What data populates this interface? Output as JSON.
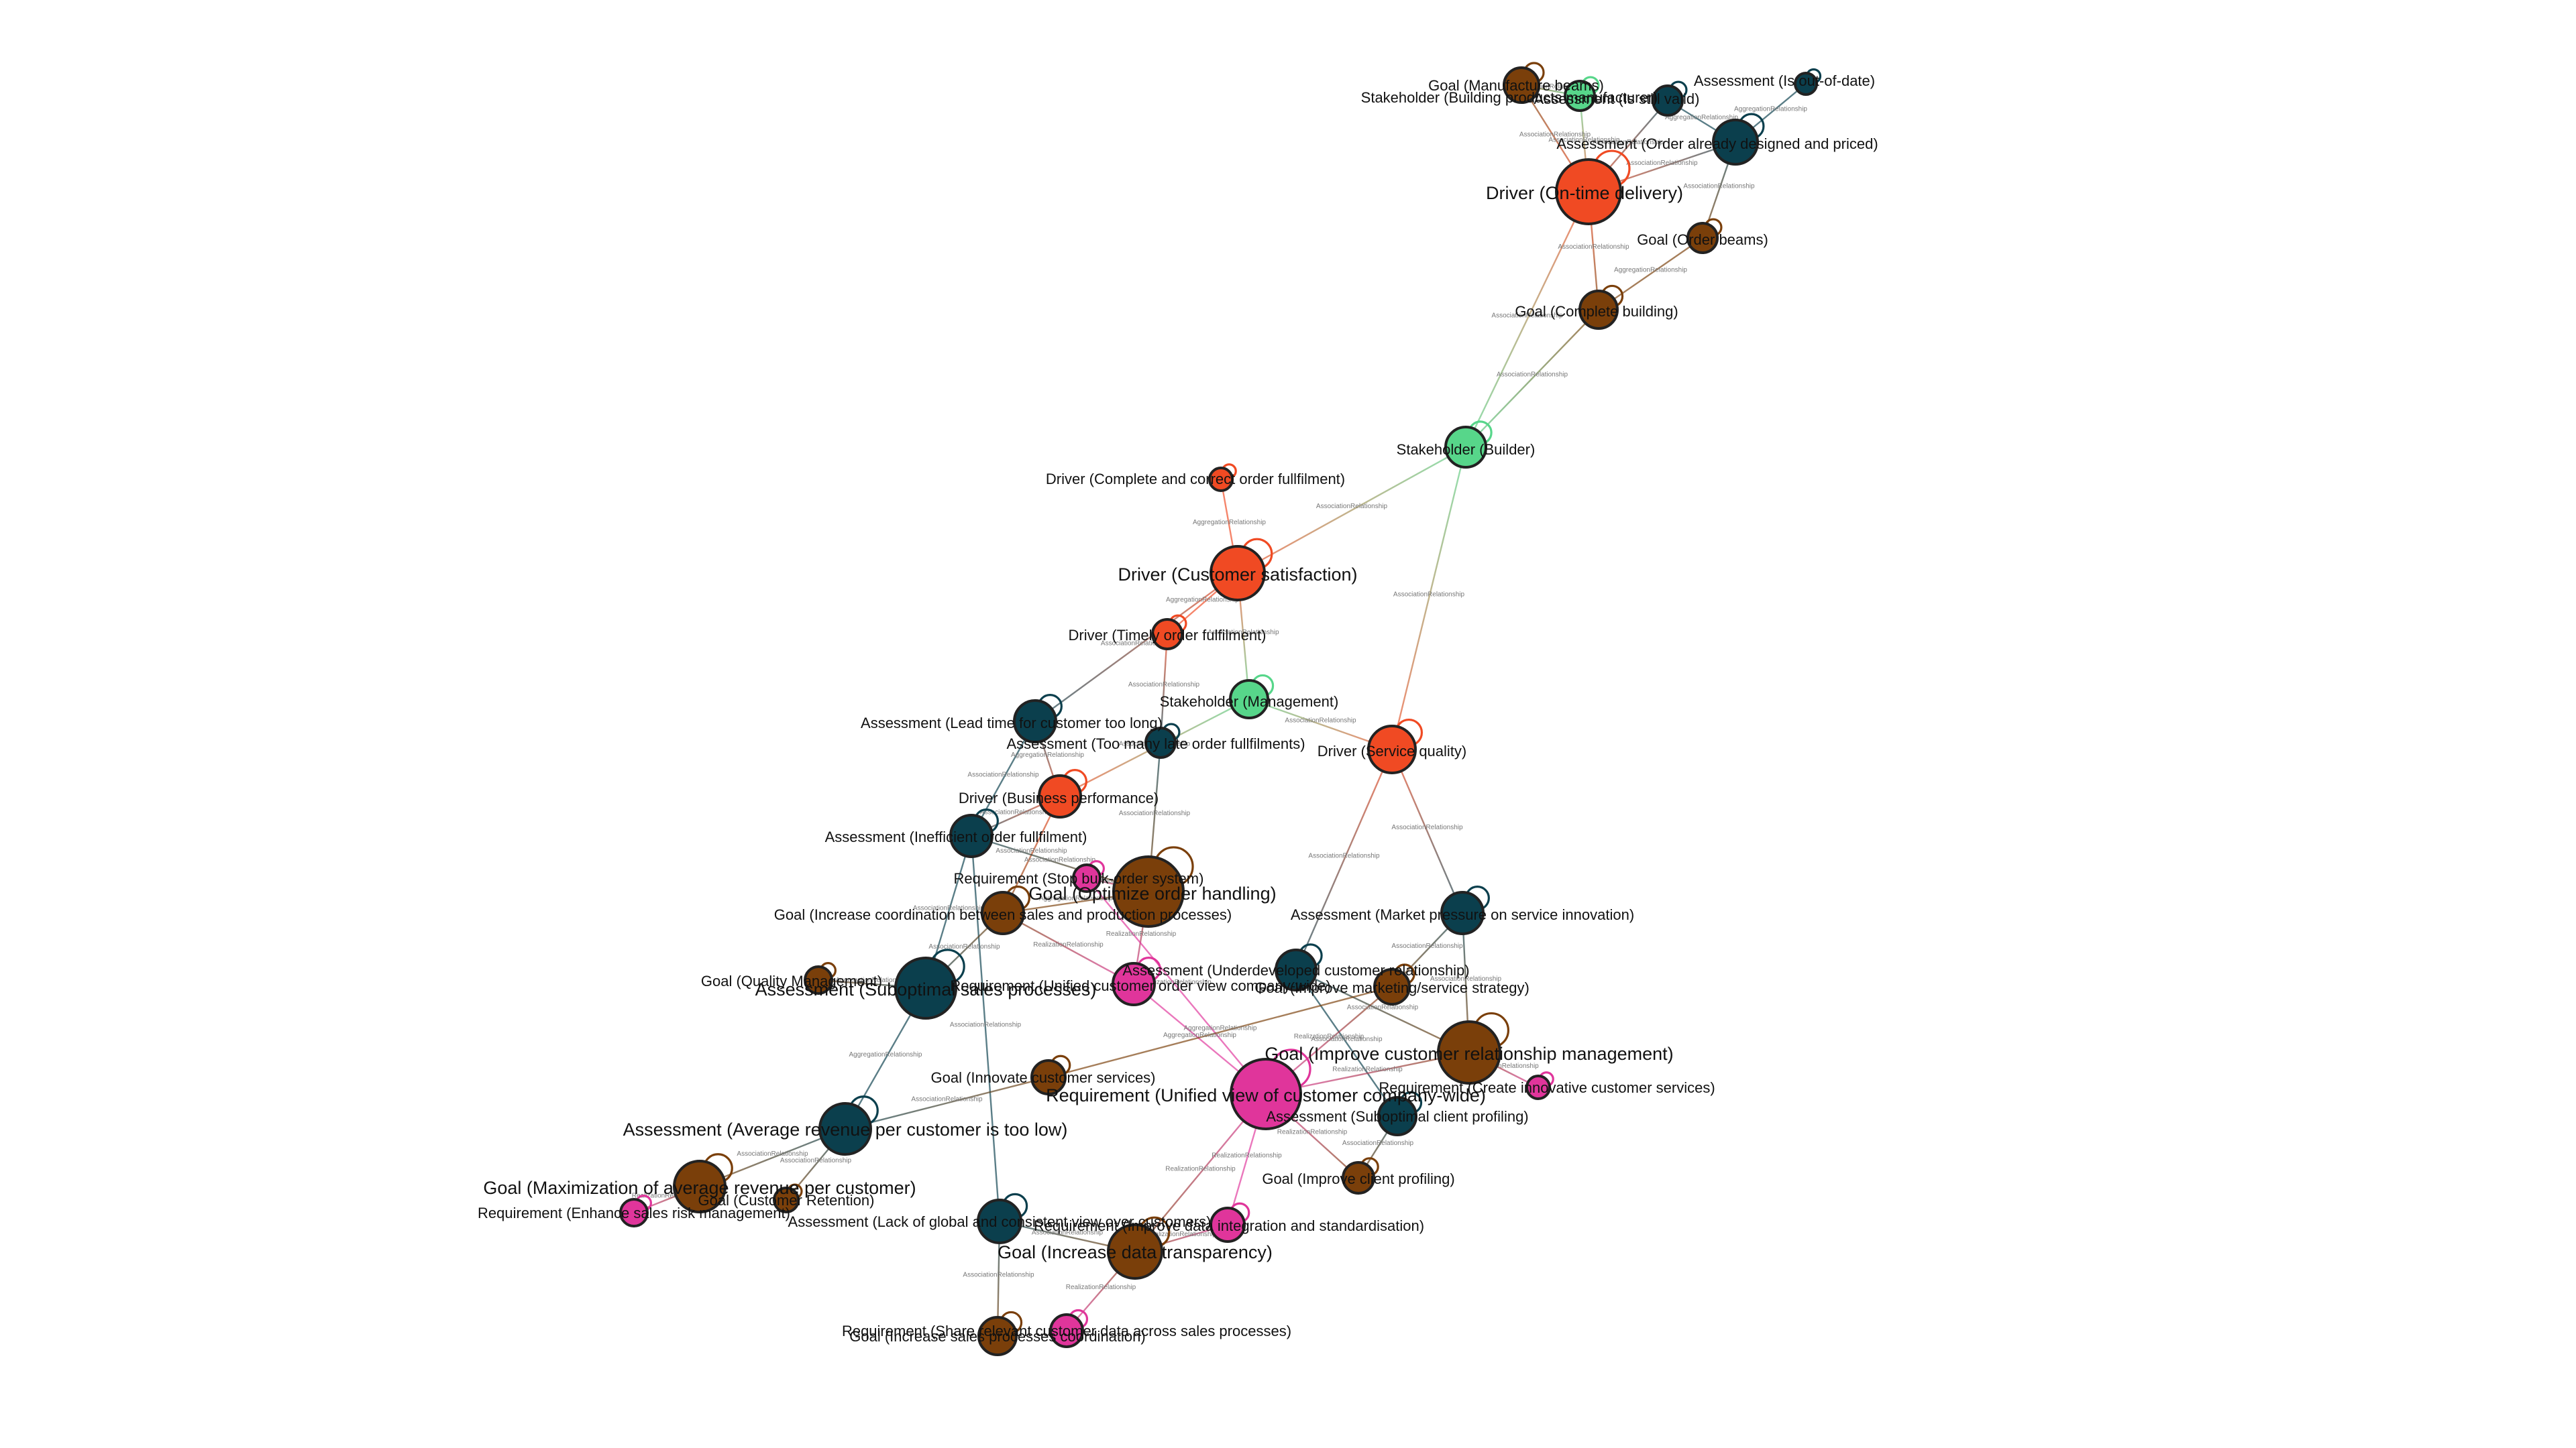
{
  "colors": {
    "Goal": "#7a3f0a",
    "Driver": "#f04a23",
    "Assessment": "#0b3f4d",
    "Stakeholder": "#57d68a",
    "Requirement": "#e0359b"
  },
  "nodes": [
    {
      "id": "g_mfg_beams",
      "type": "Goal",
      "label": "Goal (Manufacture beams)"
    },
    {
      "id": "s_bpm",
      "type": "Stakeholder",
      "label": "Stakeholder (Building products manufacturer)"
    },
    {
      "id": "a_still_valid",
      "type": "Assessment",
      "label": "Assessment (Is still valid)"
    },
    {
      "id": "a_out_of_date",
      "type": "Assessment",
      "label": "Assessment (Is out-of-date)"
    },
    {
      "id": "a_order_designed",
      "type": "Assessment",
      "label": "Assessment (Order already designed and priced)"
    },
    {
      "id": "d_on_time",
      "type": "Driver",
      "label": "Driver (On-time delivery)"
    },
    {
      "id": "g_order_beams",
      "type": "Goal",
      "label": "Goal (Order beams)"
    },
    {
      "id": "g_complete_building",
      "type": "Goal",
      "label": "Goal (Complete building)"
    },
    {
      "id": "s_builder",
      "type": "Stakeholder",
      "label": "Stakeholder (Builder)"
    },
    {
      "id": "d_complete_correct",
      "type": "Driver",
      "label": "Driver (Complete and correct order fullfilment)"
    },
    {
      "id": "d_customer_sat",
      "type": "Driver",
      "label": "Driver (Customer satisfaction)"
    },
    {
      "id": "d_timely",
      "type": "Driver",
      "label": "Driver (Timely order fulfilment)"
    },
    {
      "id": "s_management",
      "type": "Stakeholder",
      "label": "Stakeholder (Management)"
    },
    {
      "id": "a_lead_time",
      "type": "Assessment",
      "label": "Assessment (Lead time for customer too long)"
    },
    {
      "id": "a_too_many",
      "type": "Assessment",
      "label": "Assessment (Too many late order fullfilments)"
    },
    {
      "id": "d_service_quality",
      "type": "Driver",
      "label": "Driver (Service quality)"
    },
    {
      "id": "d_business_perf",
      "type": "Driver",
      "label": "Driver (Business performance)"
    },
    {
      "id": "a_inefficient",
      "type": "Assessment",
      "label": "Assessment (Inefficient order fullfilment)"
    },
    {
      "id": "r_stop_bulk",
      "type": "Requirement",
      "label": "Requirement (Stop bulk-order system)"
    },
    {
      "id": "g_optimize",
      "type": "Goal",
      "label": "Goal (Optimize order handling)"
    },
    {
      "id": "g_coordination",
      "type": "Goal",
      "label": "Goal (Increase coordination between sales and production processes)"
    },
    {
      "id": "a_market_pressure",
      "type": "Assessment",
      "label": "Assessment (Market pressure on service innovation)"
    },
    {
      "id": "g_quality_management",
      "type": "Goal",
      "label": "Goal (Quality Management)"
    },
    {
      "id": "a_suboptimal_sales",
      "type": "Assessment",
      "label": "Assessment (Suboptimal sales processes)"
    },
    {
      "id": "r_unified_order",
      "type": "Requirement",
      "label": "Requirement (Unified customer order view company-wide)"
    },
    {
      "id": "a_underdeveloped",
      "type": "Assessment",
      "label": "Assessment (Underdeveloped customer relationship)"
    },
    {
      "id": "g_improve_marketing",
      "type": "Goal",
      "label": "Goal (Improve marketing/service strategy)"
    },
    {
      "id": "g_improve_crm",
      "type": "Goal",
      "label": "Goal (Improve customer relationship management)"
    },
    {
      "id": "g_innovate",
      "type": "Goal",
      "label": "Goal (Innovate customer services)"
    },
    {
      "id": "r_unified_customer",
      "type": "Requirement",
      "label": "Requirement (Unified view of customer company-wide)"
    },
    {
      "id": "r_create_innovative",
      "type": "Requirement",
      "label": "Requirement (Create innovative customer services)"
    },
    {
      "id": "a_suboptimal_profiling",
      "type": "Assessment",
      "label": "Assessment (Suboptimal client profiling)"
    },
    {
      "id": "a_avg_revenue",
      "type": "Assessment",
      "label": "Assessment (Average revenue per customer is too low)"
    },
    {
      "id": "g_improve_profiling",
      "type": "Goal",
      "label": "Goal (Improve client profiling)"
    },
    {
      "id": "g_max_revenue",
      "type": "Goal",
      "label": "Goal (Maximization of average revenue per customer)"
    },
    {
      "id": "g_retention",
      "type": "Goal",
      "label": "Goal (Customer Retention)"
    },
    {
      "id": "r_enhance_risk",
      "type": "Requirement",
      "label": "Requirement (Enhance sales risk management)"
    },
    {
      "id": "a_lack_global",
      "type": "Assessment",
      "label": "Assessment (Lack of global and consistent view over customers)"
    },
    {
      "id": "r_improve_data",
      "type": "Requirement",
      "label": "Requirement (Improve data integration and standardisation)"
    },
    {
      "id": "g_transparency",
      "type": "Goal",
      "label": "Goal (Increase data transparency)"
    },
    {
      "id": "r_share_data",
      "type": "Requirement",
      "label": "Requirement (Share relevant customer data across sales processes)"
    },
    {
      "id": "g_sales_coordination",
      "type": "Goal",
      "label": "Goal (Increase sales processes coordination)"
    }
  ],
  "edges": [
    {
      "source": "s_bpm",
      "target": "g_mfg_beams",
      "relation": "AssociationRelationship"
    },
    {
      "source": "s_bpm",
      "target": "d_on_time",
      "relation": "AssociationRelationship"
    },
    {
      "source": "g_mfg_beams",
      "target": "d_on_time",
      "relation": "AssociationRelationship"
    },
    {
      "source": "a_still_valid",
      "target": "d_on_time",
      "relation": "AssociationRelationship"
    },
    {
      "source": "a_still_valid",
      "target": "a_order_designed",
      "relation": "AggregationRelationship"
    },
    {
      "source": "a_out_of_date",
      "target": "a_order_designed",
      "relation": "AggregationRelationship"
    },
    {
      "source": "a_order_designed",
      "target": "d_on_time",
      "relation": "AssociationRelationship"
    },
    {
      "source": "a_order_designed",
      "target": "g_order_beams",
      "relation": "AssociationRelationship"
    },
    {
      "source": "d_on_time",
      "target": "g_complete_building",
      "relation": "AssociationRelationship"
    },
    {
      "source": "d_on_time",
      "target": "s_builder",
      "relation": "AssociationRelationship"
    },
    {
      "source": "g_order_beams",
      "target": "g_complete_building",
      "relation": "AggregationRelationship"
    },
    {
      "source": "g_complete_building",
      "target": "s_builder",
      "relation": "AssociationRelationship"
    },
    {
      "source": "s_builder",
      "target": "d_customer_sat",
      "relation": "AssociationRelationship"
    },
    {
      "source": "s_builder",
      "target": "d_service_quality",
      "relation": "AssociationRelationship"
    },
    {
      "source": "d_complete_correct",
      "target": "d_customer_sat",
      "relation": "AggregationRelationship"
    },
    {
      "source": "d_customer_sat",
      "target": "d_timely",
      "relation": "AggregationRelationship"
    },
    {
      "source": "d_customer_sat",
      "target": "s_management",
      "relation": "AssociationRelationship"
    },
    {
      "source": "d_customer_sat",
      "target": "a_lead_time",
      "relation": "AssociationRelationship"
    },
    {
      "source": "d_timely",
      "target": "a_too_many",
      "relation": "AssociationRelationship"
    },
    {
      "source": "s_management",
      "target": "d_service_quality",
      "relation": "AssociationRelationship"
    },
    {
      "source": "s_management",
      "target": "d_business_perf",
      "relation": "AssociationRelationship"
    },
    {
      "source": "a_lead_time",
      "target": "d_business_perf",
      "relation": "AggregationRelationship"
    },
    {
      "source": "a_lead_time",
      "target": "a_inefficient",
      "relation": "AssociationRelationship"
    },
    {
      "source": "a_too_many",
      "target": "g_optimize",
      "relation": "AssociationRelationship"
    },
    {
      "source": "d_business_perf",
      "target": "a_inefficient",
      "relation": "AssociationRelationship"
    },
    {
      "source": "d_business_perf",
      "target": "g_coordination",
      "relation": "AssociationRelationship"
    },
    {
      "source": "a_inefficient",
      "target": "g_optimize",
      "relation": "AssociationRelationship"
    },
    {
      "source": "a_inefficient",
      "target": "a_suboptimal_sales",
      "relation": "AssociationRelationship"
    },
    {
      "source": "a_inefficient",
      "target": "a_lack_global",
      "relation": "AssociationRelationship"
    },
    {
      "source": "r_stop_bulk",
      "target": "g_optimize",
      "relation": "RealizationRelationship"
    },
    {
      "source": "g_optimize",
      "target": "g_coordination",
      "relation": "AggregationRelationship"
    },
    {
      "source": "g_optimize",
      "target": "r_unified_order",
      "relation": "RealizationRelationship"
    },
    {
      "source": "g_coordination",
      "target": "a_suboptimal_sales",
      "relation": "AssociationRelationship"
    },
    {
      "source": "g_coordination",
      "target": "r_unified_order",
      "relation": "RealizationRelationship"
    },
    {
      "source": "g_quality_management",
      "target": "a_suboptimal_sales",
      "relation": "AggregationRelationship"
    },
    {
      "source": "a_suboptimal_sales",
      "target": "a_avg_revenue",
      "relation": "AggregationRelationship"
    },
    {
      "source": "r_unified_order",
      "target": "r_unified_customer",
      "relation": "AggregationRelationship"
    },
    {
      "source": "r_stop_bulk",
      "target": "r_unified_customer",
      "relation": "RealizationRelationship"
    },
    {
      "source": "d_service_quality",
      "target": "a_underdeveloped",
      "relation": "AssociationRelationship"
    },
    {
      "source": "d_service_quality",
      "target": "a_market_pressure",
      "relation": "AssociationRelationship"
    },
    {
      "source": "a_market_pressure",
      "target": "g_improve_marketing",
      "relation": "AssociationRelationship"
    },
    {
      "source": "a_market_pressure",
      "target": "g_improve_crm",
      "relation": "AssociationRelationship"
    },
    {
      "source": "a_underdeveloped",
      "target": "g_improve_crm",
      "relation": "AssociationRelationship"
    },
    {
      "source": "a_underdeveloped",
      "target": "a_suboptimal_profiling",
      "relation": "AssociationRelationship"
    },
    {
      "source": "g_improve_marketing",
      "target": "r_unified_customer",
      "relation": "RealizationRelationship"
    },
    {
      "source": "g_innovate",
      "target": "g_improve_marketing",
      "relation": "AggregationRelationship"
    },
    {
      "source": "g_improve_crm",
      "target": "r_create_innovative",
      "relation": "RealizationRelationship"
    },
    {
      "source": "g_improve_crm",
      "target": "r_unified_customer",
      "relation": "RealizationRelationship"
    },
    {
      "source": "a_suboptimal_profiling",
      "target": "g_improve_profiling",
      "relation": "AssociationRelationship"
    },
    {
      "source": "r_unified_customer",
      "target": "g_improve_profiling",
      "relation": "RealizationRelationship"
    },
    {
      "source": "r_unified_customer",
      "target": "r_improve_data",
      "relation": "RealizationRelationship"
    },
    {
      "source": "r_unified_customer",
      "target": "g_transparency",
      "relation": "RealizationRelationship"
    },
    {
      "source": "a_avg_revenue",
      "target": "g_max_revenue",
      "relation": "AssociationRelationship"
    },
    {
      "source": "a_avg_revenue",
      "target": "g_retention",
      "relation": "AssociationRelationship"
    },
    {
      "source": "a_avg_revenue",
      "target": "g_innovate",
      "relation": "AssociationRelationship"
    },
    {
      "source": "g_max_revenue",
      "target": "r_enhance_risk",
      "relation": "RealizationRelationship"
    },
    {
      "source": "a_lack_global",
      "target": "g_transparency",
      "relation": "AssociationRelationship"
    },
    {
      "source": "a_lack_global",
      "target": "g_sales_coordination",
      "relation": "AssociationRelationship"
    },
    {
      "source": "g_transparency",
      "target": "r_improve_data",
      "relation": "RealizationRelationship"
    },
    {
      "source": "g_transparency",
      "target": "r_share_data",
      "relation": "RealizationRelationship"
    }
  ]
}
